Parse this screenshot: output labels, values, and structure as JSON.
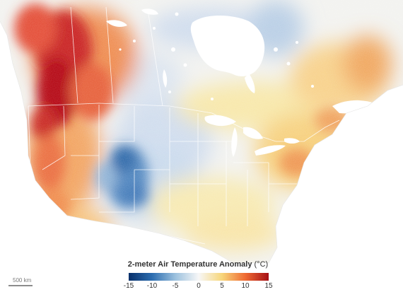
{
  "map": {
    "palette": {
      "strong_warm": "#b2000f",
      "warm": "#e34a33",
      "mild_warm": "#f4a460",
      "slight_warm": "#f7dd8a",
      "neutral": "#f2f2ef",
      "slight_cool": "#cfdced",
      "cool": "#7fa8cf",
      "strong_cool": "#1f5da0",
      "water": "#ffffff",
      "borders": "#ffffff"
    }
  },
  "legend": {
    "title": "2-meter Air Temperature Anomaly",
    "unit": "(°C)",
    "ticks": [
      "-15",
      "-10",
      "-5",
      "0",
      "5",
      "10",
      "15"
    ],
    "colors": [
      "#08306b",
      "#2c6db0",
      "#9cc1de",
      "#f7f7f7",
      "#f7d67a",
      "#ef6a32",
      "#a50f15"
    ]
  },
  "scale_bar": {
    "label": "500 km"
  }
}
